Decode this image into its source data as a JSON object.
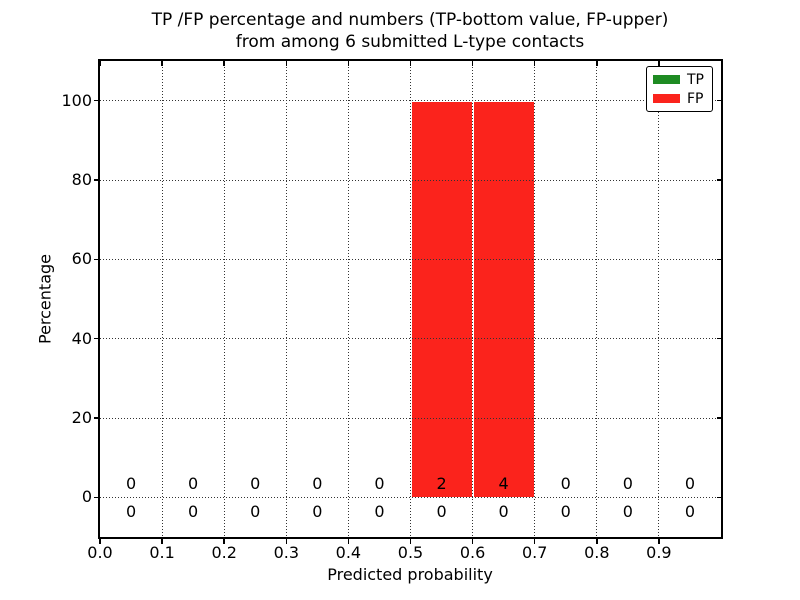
{
  "title": {
    "line1": "TP /FP percentage and numbers (TP-bottom value, FP-upper)",
    "line2": "from among 6 submitted L-type contacts"
  },
  "axes": {
    "xlabel": "Predicted probability",
    "ylabel": "Percentage",
    "x_tick_labels": [
      "0.0",
      "0.1",
      "0.2",
      "0.3",
      "0.4",
      "0.5",
      "0.6",
      "0.7",
      "0.8",
      "0.9"
    ],
    "y_tick_labels": [
      "0",
      "20",
      "40",
      "60",
      "80",
      "100"
    ],
    "y_tick_values": [
      0,
      20,
      40,
      60,
      80,
      100
    ]
  },
  "legend": {
    "position": "upper right",
    "items": [
      {
        "label": "TP",
        "color": "#1e8b22"
      },
      {
        "label": "FP",
        "color": "#fb231c"
      }
    ]
  },
  "chart_data": {
    "type": "bar",
    "stacked": true,
    "title": "TP /FP percentage and numbers (TP-bottom value, FP-upper) from among 6 submitted L-type contacts",
    "xlabel": "Predicted probability",
    "ylabel": "Percentage",
    "xlim": [
      0.0,
      1.0
    ],
    "ylim": [
      -10,
      110
    ],
    "grid": "dotted, drawn above bars",
    "total_contacts": 6,
    "bins": [
      [
        0.0,
        0.1
      ],
      [
        0.1,
        0.2
      ],
      [
        0.2,
        0.3
      ],
      [
        0.3,
        0.4
      ],
      [
        0.4,
        0.5
      ],
      [
        0.5,
        0.6
      ],
      [
        0.6,
        0.7
      ],
      [
        0.7,
        0.8
      ],
      [
        0.8,
        0.9
      ],
      [
        0.9,
        1.0
      ]
    ],
    "bin_centers": [
      0.05,
      0.15,
      0.25,
      0.35,
      0.45,
      0.55,
      0.65,
      0.75,
      0.85,
      0.95
    ],
    "series": [
      {
        "name": "TP",
        "color": "#1e8b22",
        "percent": [
          0,
          0,
          0,
          0,
          0,
          0,
          0,
          0,
          0,
          0
        ],
        "counts": [
          0,
          0,
          0,
          0,
          0,
          0,
          0,
          0,
          0,
          0
        ]
      },
      {
        "name": "FP",
        "color": "#fb231c",
        "percent": [
          0,
          0,
          0,
          0,
          0,
          100,
          100,
          0,
          0,
          0
        ],
        "counts": [
          0,
          0,
          0,
          0,
          0,
          2,
          4,
          0,
          0,
          0
        ]
      }
    ],
    "annotation_rows": [
      {
        "series": "FP",
        "row": "upper",
        "values": [
          "0",
          "0",
          "0",
          "0",
          "0",
          "2",
          "4",
          "0",
          "0",
          "0"
        ]
      },
      {
        "series": "TP",
        "row": "lower",
        "values": [
          "0",
          "0",
          "0",
          "0",
          "0",
          "0",
          "0",
          "0",
          "0",
          "0"
        ]
      }
    ]
  }
}
